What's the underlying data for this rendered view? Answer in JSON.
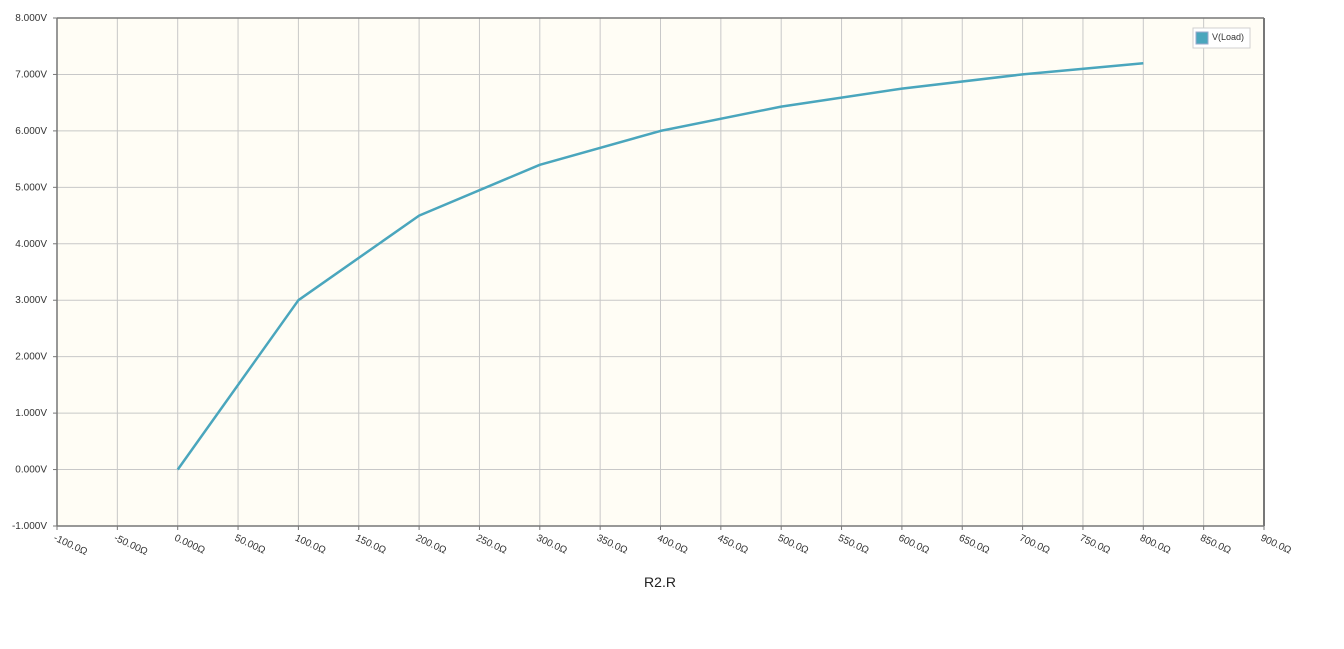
{
  "chart_data": {
    "type": "line",
    "xlabel": "R2.R",
    "ylabel": "",
    "xlim": [
      -100,
      900
    ],
    "ylim": [
      -1,
      8
    ],
    "grid": true,
    "legend_position": "top-right",
    "x_ticks": [
      -100,
      -50,
      0,
      50,
      100,
      150,
      200,
      250,
      300,
      350,
      400,
      450,
      500,
      550,
      600,
      650,
      700,
      750,
      800,
      850,
      900
    ],
    "x_tick_labels": [
      "-100.0Ω",
      "-50.00Ω",
      "0.000Ω",
      "50.00Ω",
      "100.0Ω",
      "150.0Ω",
      "200.0Ω",
      "250.0Ω",
      "300.0Ω",
      "350.0Ω",
      "400.0Ω",
      "450.0Ω",
      "500.0Ω",
      "550.0Ω",
      "600.0Ω",
      "650.0Ω",
      "700.0Ω",
      "750.0Ω",
      "800.0Ω",
      "850.0Ω",
      "900.0Ω"
    ],
    "y_ticks": [
      -1,
      0,
      1,
      2,
      3,
      4,
      5,
      6,
      7,
      8
    ],
    "y_tick_labels": [
      "-1.000V",
      "0.000V",
      "1.000V",
      "2.000V",
      "3.000V",
      "4.000V",
      "5.000V",
      "6.000V",
      "7.000V",
      "8.000V"
    ],
    "series": [
      {
        "name": "V(Load)",
        "color": "#4aa6bd",
        "x": [
          0,
          100,
          200,
          300,
          400,
          500,
          600,
          700,
          800
        ],
        "y": [
          0.0,
          3.0,
          4.5,
          5.4,
          6.0,
          6.43,
          6.75,
          7.0,
          7.2
        ]
      }
    ]
  },
  "colors": {
    "plot_background": "#fffdf5",
    "grid": "#c8c8c8",
    "axis": "#777777"
  }
}
